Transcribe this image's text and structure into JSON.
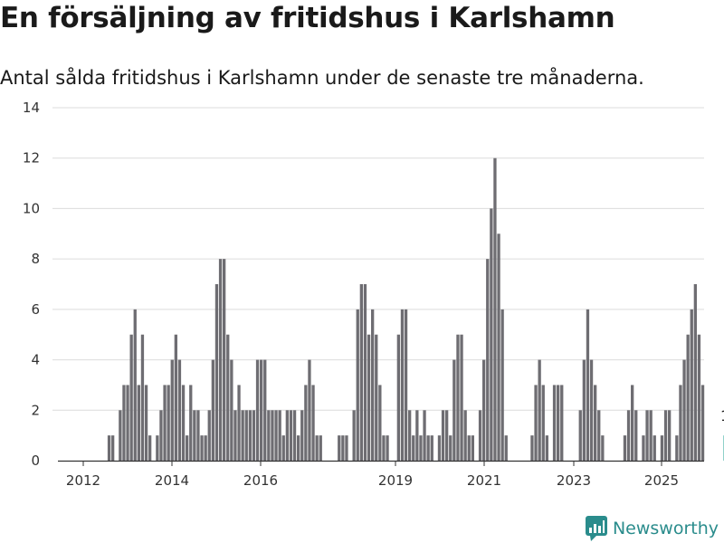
{
  "title": "En försäljning av fritidshus i Karlshamn",
  "subtitle": "Antal sålda fritidshus i Karlshamn under de senaste tre månaderna.",
  "brand": {
    "name": "Newsworthy",
    "icon": "newsworthy-logo-icon",
    "color": "#2a8c8c"
  },
  "chart_data": {
    "type": "bar",
    "y_ticks": [
      0,
      2,
      4,
      6,
      8,
      10,
      12,
      14
    ],
    "ylim": [
      0,
      14
    ],
    "x_ticks": [
      "2012",
      "2014",
      "2016",
      "2019",
      "2021",
      "2023",
      "2025"
    ],
    "grid": true,
    "colors": {
      "bars": "#6e6d72",
      "highlight": "#21a396"
    },
    "series": [
      {
        "values": [
          0,
          0,
          0,
          0,
          0,
          0,
          0,
          1,
          1,
          0,
          2,
          3,
          3,
          5,
          6,
          3,
          5,
          3,
          1,
          0,
          1,
          2,
          3,
          3,
          4,
          5,
          4,
          3,
          1,
          3,
          2,
          2,
          1,
          1,
          2,
          4,
          7,
          8,
          8,
          5,
          4,
          2,
          3,
          2,
          2,
          2,
          2,
          4,
          4,
          4,
          2,
          2,
          2,
          2,
          1,
          2,
          2,
          2,
          1,
          2,
          3,
          4,
          3,
          1,
          1,
          0,
          0,
          0,
          0,
          1,
          1,
          1,
          0,
          2,
          6,
          7,
          7,
          5,
          6,
          5,
          3,
          1,
          1,
          0,
          0,
          5,
          6,
          6,
          2,
          1,
          2,
          1,
          2,
          1,
          1,
          0,
          1,
          2,
          2,
          1,
          4,
          5,
          5,
          2,
          1,
          1,
          0,
          2,
          4,
          8,
          10,
          12,
          9,
          6,
          1,
          0,
          0,
          0,
          0,
          0,
          0,
          1,
          3,
          4,
          3,
          1,
          0,
          3,
          3,
          3,
          0,
          0,
          0,
          0,
          2,
          4,
          6,
          4,
          3,
          2,
          1,
          0,
          0,
          0,
          0,
          0,
          1,
          2,
          3,
          2,
          0,
          1,
          2,
          2,
          1,
          0,
          1,
          2,
          2,
          0,
          1,
          3,
          4,
          5,
          6,
          7,
          5,
          3,
          0,
          0,
          0,
          0,
          0,
          1
        ]
      }
    ],
    "highlight": {
      "label": "1",
      "value": 1
    }
  }
}
